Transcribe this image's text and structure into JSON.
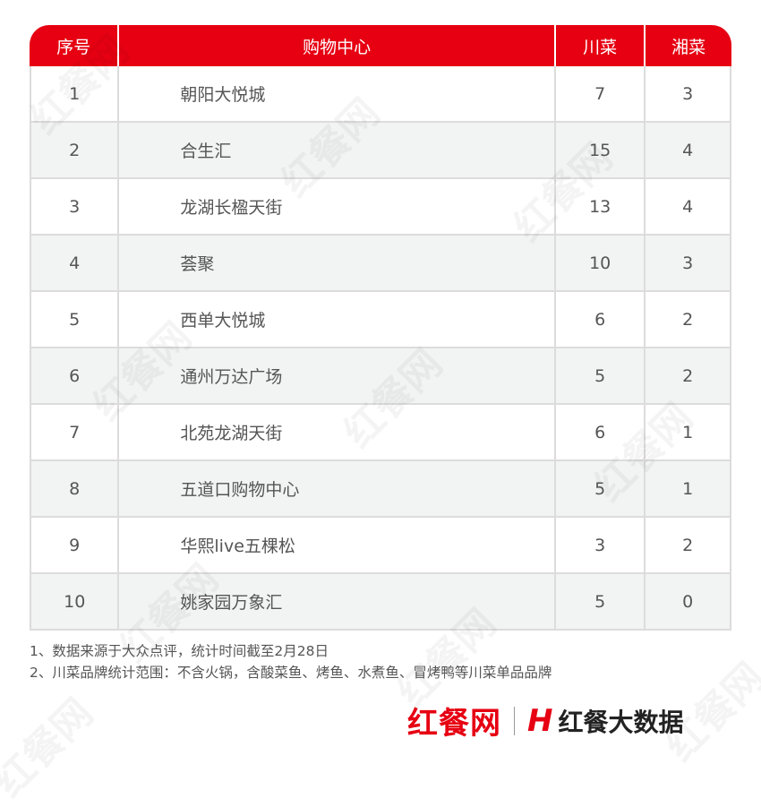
{
  "chart_data": {
    "type": "table",
    "columns": [
      "序号",
      "购物中心",
      "川菜",
      "湘菜"
    ],
    "rows": [
      [
        "1",
        "朝阳大悦城",
        "7",
        "3"
      ],
      [
        "2",
        "合生汇",
        "15",
        "4"
      ],
      [
        "3",
        "龙湖长楹天街",
        "13",
        "4"
      ],
      [
        "4",
        "荟聚",
        "10",
        "3"
      ],
      [
        "5",
        "西单大悦城",
        "6",
        "2"
      ],
      [
        "6",
        "通州万达广场",
        "5",
        "2"
      ],
      [
        "7",
        "北苑龙湖天街",
        "6",
        "1"
      ],
      [
        "8",
        "五道口购物中心",
        "5",
        "1"
      ],
      [
        "9",
        "华熙live五棵松",
        "3",
        "2"
      ],
      [
        "10",
        "姚家园万象汇",
        "5",
        "0"
      ]
    ]
  },
  "notes": [
    "1、数据来源于大众点评，统计时间截至2月28日",
    "2、川菜品牌统计范围：不含火锅，含酸菜鱼、烤鱼、水煮鱼、冒烤鸭等川菜单品品牌"
  ],
  "branding": {
    "logo1": "红餐网",
    "logo2": "红餐大数据",
    "watermark": "红餐网"
  },
  "colors": {
    "header": "#e60012",
    "alt_row": "#f2f4f3"
  }
}
